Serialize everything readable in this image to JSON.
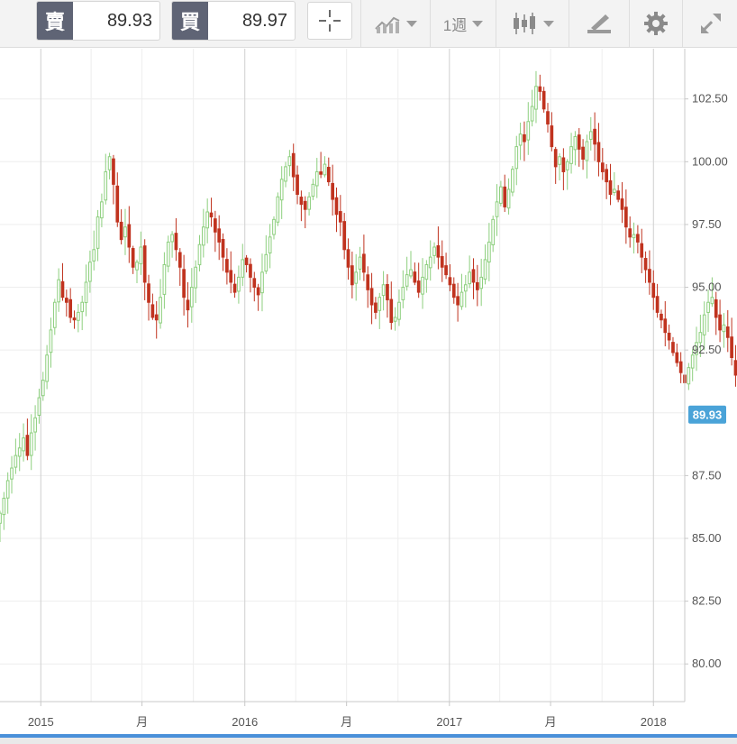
{
  "toolbar": {
    "sell_label": "賣",
    "sell_price": "89.93",
    "buy_label": "買",
    "buy_price": "89.97",
    "timeframe_label": "1週",
    "icons": [
      "crosshair-icon",
      "line-chart-icon",
      "candlestick-icon",
      "draw-tools-icon",
      "gear-icon",
      "fullscreen-icon"
    ]
  },
  "colors": {
    "up": "#8dcf7e",
    "down": "#c0331f",
    "grid": "#eeeeee",
    "badge": "#4aa3d8",
    "footer": "#4a90d9"
  },
  "chart_data": {
    "type": "candlestick",
    "title": "",
    "xlabel": "",
    "ylabel": "",
    "current_price": 89.93,
    "current_price_label": "89.93",
    "ylim": [
      78.5,
      104.5
    ],
    "y_ticks": [
      80.0,
      82.5,
      85.0,
      87.5,
      90.0,
      92.5,
      95.0,
      97.5,
      100.0,
      102.5
    ],
    "y_tick_labels": [
      "80.00",
      "82.50",
      "85.00",
      "87.50",
      "90.00",
      "92.50",
      "95.00",
      "97.50",
      "100.00",
      "102.50"
    ],
    "x_range": [
      "2014-10-20",
      "2018-02-26"
    ],
    "x_ticks": [
      {
        "date": "2015-01-01",
        "label": "2015",
        "major": true
      },
      {
        "date": "2015-07-01",
        "label": "月",
        "major": false
      },
      {
        "date": "2016-01-01",
        "label": "2016",
        "major": true
      },
      {
        "date": "2016-07-01",
        "label": "月",
        "major": false
      },
      {
        "date": "2017-01-01",
        "label": "2017",
        "major": true
      },
      {
        "date": "2017-07-01",
        "label": "月",
        "major": false
      },
      {
        "date": "2018-01-01",
        "label": "2018",
        "major": true
      }
    ],
    "x_grid_extra": [
      "2014-10-01",
      "2015-04-01",
      "2015-10-01",
      "2016-04-01",
      "2016-10-01",
      "2017-04-01",
      "2017-10-01"
    ],
    "candles_start": "2014-10-20",
    "candle_interval_days": 7,
    "close_path": [
      86.0,
      86.6,
      87.3,
      87.8,
      88.3,
      88.6,
      89.0,
      88.3,
      89.2,
      89.8,
      90.6,
      91.3,
      92.3,
      93.3,
      94.4,
      95.3,
      94.6,
      94.4,
      93.8,
      93.7,
      94.0,
      94.4,
      95.2,
      96.0,
      96.5,
      97.8,
      98.4,
      99.6,
      100.2,
      99.1,
      97.6,
      96.9,
      97.4,
      96.6,
      95.8,
      96.0,
      96.6,
      95.2,
      94.4,
      93.8,
      93.7,
      94.6,
      95.9,
      96.8,
      97.1,
      96.5,
      95.8,
      94.6,
      94.1,
      95.0,
      95.8,
      96.7,
      97.4,
      98.0,
      97.8,
      97.2,
      96.8,
      96.2,
      95.6,
      95.2,
      94.8,
      95.4,
      96.1,
      95.9,
      95.4,
      95.0,
      94.7,
      95.6,
      96.3,
      97.0,
      97.7,
      98.6,
      99.3,
      99.8,
      100.2,
      99.4,
      98.7,
      98.3,
      98.1,
      98.6,
      99.1,
      99.6,
      99.5,
      99.9,
      99.2,
      98.5,
      97.9,
      97.6,
      96.5,
      95.8,
      95.1,
      95.6,
      96.2,
      95.6,
      94.9,
      94.3,
      94.0,
      94.6,
      95.1,
      94.5,
      93.6,
      93.8,
      94.4,
      95.0,
      95.5,
      95.7,
      95.2,
      94.8,
      95.4,
      95.9,
      96.2,
      96.6,
      96.2,
      95.8,
      95.5,
      95.1,
      94.6,
      94.3,
      94.8,
      95.1,
      95.6,
      95.2,
      94.9,
      95.4,
      96.1,
      96.8,
      97.7,
      98.4,
      99.0,
      98.2,
      98.9,
      99.7,
      100.6,
      101.1,
      100.8,
      101.6,
      102.2,
      103.0,
      102.8,
      102.1,
      101.5,
      100.6,
      99.8,
      100.2,
      99.6,
      100.0,
      100.6,
      101.0,
      100.5,
      100.1,
      100.8,
      101.2,
      100.7,
      100.0,
      99.6,
      99.2,
      98.7,
      98.9,
      98.5,
      98.1,
      97.4,
      97.0,
      97.1,
      96.8,
      96.2,
      95.7,
      95.2,
      94.6,
      94.0,
      93.7,
      93.2,
      92.9,
      92.4,
      92.0,
      91.6,
      91.2,
      91.8,
      92.3,
      92.8,
      93.2,
      93.9,
      94.4,
      94.6,
      93.8,
      93.3,
      93.5,
      93.0,
      92.2,
      91.5,
      90.8,
      90.2,
      89.93
    ],
    "notable_extremes": {
      "high": 103.8,
      "high_date": "2016-12-26",
      "low_recent": 89.93,
      "low_start": 85.2
    }
  }
}
